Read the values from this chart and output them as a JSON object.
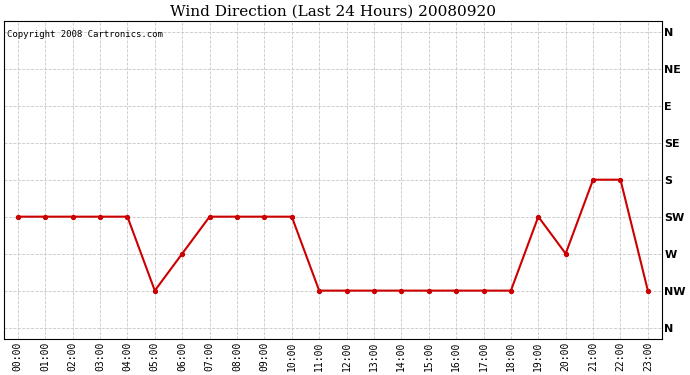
{
  "title": "Wind Direction (Last 24 Hours) 20080920",
  "copyright_text": "Copyright 2008 Cartronics.com",
  "hours": [
    0,
    1,
    2,
    3,
    4,
    5,
    6,
    7,
    8,
    9,
    10,
    11,
    12,
    13,
    14,
    15,
    16,
    17,
    18,
    19,
    20,
    21,
    22,
    23
  ],
  "hour_labels": [
    "00:00",
    "01:00",
    "02:00",
    "03:00",
    "04:00",
    "05:00",
    "06:00",
    "07:00",
    "08:00",
    "09:00",
    "10:00",
    "11:00",
    "12:00",
    "13:00",
    "14:00",
    "15:00",
    "16:00",
    "17:00",
    "18:00",
    "19:00",
    "20:00",
    "21:00",
    "22:00",
    "23:00"
  ],
  "wind_values": [
    5,
    5,
    5,
    5,
    5,
    7,
    6,
    5,
    5,
    5,
    5,
    7,
    7,
    7,
    7,
    7,
    7,
    7,
    7,
    5,
    6,
    4,
    4,
    7
  ],
  "yticks": [
    0,
    1,
    2,
    3,
    4,
    5,
    6,
    7,
    8
  ],
  "yticklabels": [
    "N",
    "NE",
    "E",
    "SE",
    "S",
    "SW",
    "W",
    "NW",
    "N"
  ],
  "ylim": [
    -0.3,
    8.3
  ],
  "line_color": "#cc0000",
  "marker": "o",
  "marker_size": 3,
  "line_width": 1.5,
  "bg_color": "#ffffff",
  "plot_bg_color": "#ffffff",
  "grid_color": "#c8c8c8",
  "title_fontsize": 11,
  "label_fontsize": 7,
  "copyright_fontsize": 6.5
}
